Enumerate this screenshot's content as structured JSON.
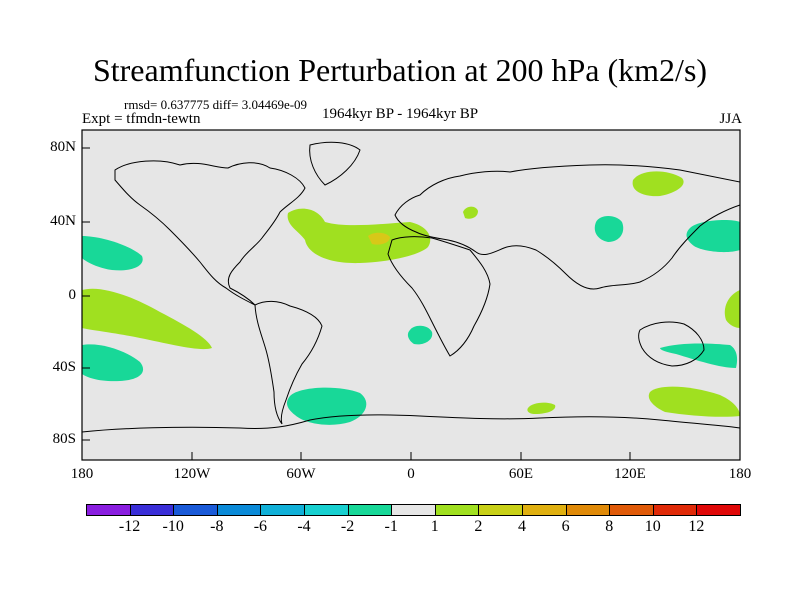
{
  "figure": {
    "title": "Streamfunction Perturbation at 200 hPa (km2/s)",
    "stats": "rmsd= 0.637775 diff= 3.04469e-09",
    "experiment": "Expt = tfmdn-tewtn",
    "period": "1964kyr BP - 1964kyr BP",
    "season": "JJA"
  },
  "axes": {
    "lat_labels": [
      "80N",
      "40N",
      "0",
      "40S",
      "80S"
    ],
    "lon_labels": [
      "180",
      "120W",
      "60W",
      "0",
      "60E",
      "120E",
      "180"
    ]
  },
  "colorbar": {
    "labels": [
      "-12",
      "-10",
      "-8",
      "-6",
      "-4",
      "-2",
      "-1",
      "1",
      "2",
      "4",
      "6",
      "8",
      "10",
      "12"
    ],
    "colors": [
      "#8a1ee0",
      "#3a2ed8",
      "#1a5ad8",
      "#0a8ad8",
      "#10b0d8",
      "#18d0d0",
      "#18d898",
      "#e6e6e6",
      "#a0e020",
      "#c8d018",
      "#e0b010",
      "#e08a08",
      "#e05a08",
      "#e02a08",
      "#e00808"
    ]
  },
  "colors": {
    "ocean_land_background": "#e6e6e6",
    "positive_1_2": "#a0e020",
    "negative_1_2": "#18d898",
    "positive_2_4": "#c8d018",
    "positive_4_6": "#e0b010"
  }
}
